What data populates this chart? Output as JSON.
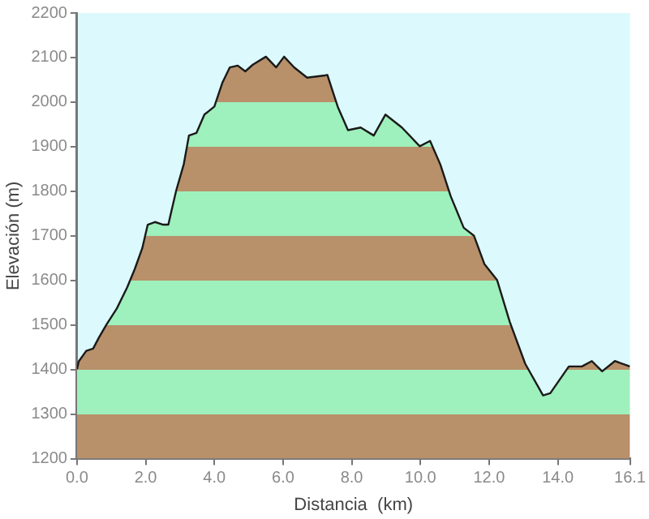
{
  "chart_data": {
    "type": "area",
    "xlabel": "Distancia  (km)",
    "ylabel": "Elevación (m)",
    "x": [
      0,
      0.05,
      0.27,
      0.47,
      0.64,
      0.86,
      1.16,
      1.46,
      1.68,
      1.9,
      2.06,
      2.27,
      2.51,
      2.66,
      2.73,
      2.89,
      3.11,
      3.26,
      3.48,
      3.71,
      4.0,
      4.23,
      4.45,
      4.68,
      4.9,
      5.12,
      5.5,
      5.8,
      6.03,
      6.32,
      6.7,
      7.22,
      7.29,
      7.59,
      7.89,
      8.26,
      8.64,
      8.98,
      9.46,
      9.98,
      10.28,
      10.58,
      10.88,
      11.26,
      11.56,
      11.86,
      12.23,
      12.6,
      13.05,
      13.57,
      13.78,
      14.32,
      14.7,
      14.99,
      15.29,
      15.66,
      16.1
    ],
    "series": [
      {
        "color": "#1a1a1a",
        "values": [
          1401,
          1418,
          1442,
          1447,
          1472,
          1501,
          1537,
          1584,
          1625,
          1672,
          1725,
          1731,
          1725,
          1725,
          1749,
          1802,
          1861,
          1925,
          1931,
          1972,
          1990,
          2043,
          2078,
          2082,
          2069,
          2084,
          2102,
          2078,
          2102,
          2078,
          2055,
          2060,
          2061,
          1990,
          1937,
          1943,
          1925,
          1972,
          1943,
          1901,
          1913,
          1860,
          1789,
          1718,
          1700,
          1637,
          1601,
          1507,
          1413,
          1342,
          1347,
          1407,
          1407,
          1419,
          1396,
          1419,
          1407
        ]
      }
    ],
    "xlim": [
      0,
      16.1
    ],
    "ylim": [
      1200,
      2200
    ],
    "xticks": [
      {
        "value": 0,
        "label": "0.0"
      },
      {
        "value": 2,
        "label": "2.0"
      },
      {
        "value": 4,
        "label": "4.0"
      },
      {
        "value": 6,
        "label": "6.0"
      },
      {
        "value": 8,
        "label": "8.0"
      },
      {
        "value": 10,
        "label": "10.0"
      },
      {
        "value": 12,
        "label": "12.0"
      },
      {
        "value": 14,
        "label": "14.0"
      },
      {
        "value": 16.1,
        "label": "16.1"
      }
    ],
    "yticks": [
      1200,
      1300,
      1400,
      1500,
      1600,
      1700,
      1800,
      1900,
      2000,
      2100,
      2200
    ],
    "grid": false,
    "legend": false
  }
}
